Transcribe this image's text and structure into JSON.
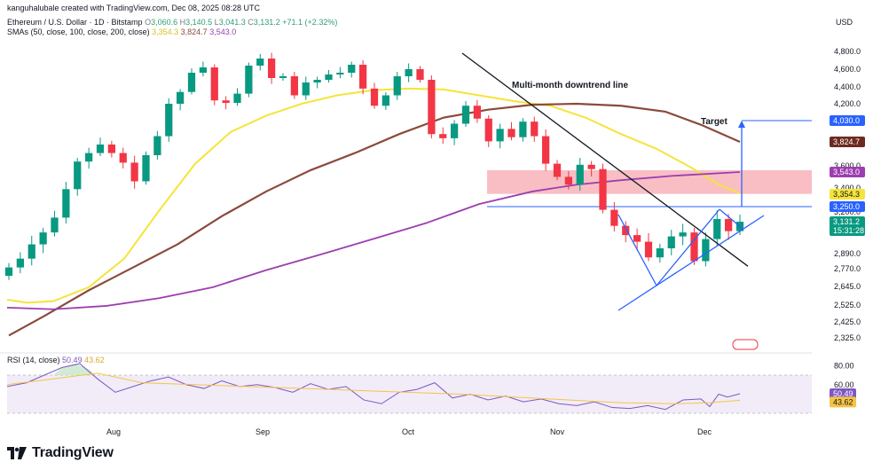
{
  "header": {
    "author_line": "kanguhalubale created with TradingView.com, Dec 08, 2025 08:28 UTC",
    "symbol": "Ethereum / U.S. Dollar · 1D · Bitstamp",
    "ohlc": [
      {
        "k": "O",
        "v": "3,060.6"
      },
      {
        "k": "H",
        "v": "3,140.5"
      },
      {
        "k": "L",
        "v": "3,041.3"
      },
      {
        "k": "C",
        "v": "3,131.2"
      }
    ],
    "change": "+71.1 (+2.32%)",
    "sma_label": "SMAs (50, close, 100, close, 200, close)",
    "sma_values": [
      "3,354.3",
      "3,824.7",
      "3,543.0"
    ],
    "currency": "USD",
    "brand": "TradingView"
  },
  "colors": {
    "up": "#089981",
    "down": "#f23645",
    "sma50": "#f5e43a",
    "sma100": "#8b4a3c",
    "sma200": "#9c3eb0",
    "rsi": "#7e57c2",
    "rsi_ma": "#f6c445",
    "pattern": "#2962ff"
  },
  "chart_data": [
    {
      "type": "line",
      "title": "Ethereum / U.S. Dollar · 1D · Bitstamp",
      "ylabel": "USD",
      "ylim": [
        2250,
        4950
      ],
      "x_ticks": [
        "Aug",
        "Sep",
        "Oct",
        "Nov",
        "Dec"
      ],
      "y_ticks": [
        "4,800.0",
        "4,600.0",
        "4,400.0",
        "4,200.0",
        "3,600.0",
        "3,400.0",
        "3,200.0",
        "2,890.0",
        "2,770.0",
        "2,645.0",
        "2,525.0",
        "2,425.0",
        "2,325.0"
      ],
      "candles_close_approx": [
        2780,
        2850,
        2960,
        3050,
        3160,
        3390,
        3640,
        3720,
        3800,
        3720,
        3630,
        3460,
        3700,
        3880,
        4200,
        4340,
        4560,
        4620,
        4240,
        4210,
        4320,
        4640,
        4720,
        4500,
        4520,
        4300,
        4450,
        4480,
        4540,
        4560,
        4650,
        4380,
        4180,
        4300,
        4520,
        4600,
        4480,
        3900,
        3860,
        4000,
        4180,
        4050,
        3830,
        3950,
        3870,
        4020,
        3880,
        3620,
        3500,
        3430,
        3610,
        3570,
        3220,
        3100,
        3030,
        2980,
        2860,
        2930,
        3020,
        3050,
        2830,
        3000,
        3150,
        3060,
        3131
      ],
      "series": [
        {
          "name": "SMA 50",
          "value_last": 3354.3
        },
        {
          "name": "SMA 100",
          "value_last": 3824.7
        },
        {
          "name": "SMA 200",
          "value_last": 3543.0
        }
      ],
      "price_labels": [
        {
          "text": "4,030.0",
          "kind": "target"
        },
        {
          "text": "3,824.7",
          "kind": "sma100"
        },
        {
          "text": "3,543.0",
          "kind": "sma200"
        },
        {
          "text": "3,354.3",
          "kind": "sma50"
        },
        {
          "text": "3,250.0",
          "kind": "level"
        },
        {
          "text": "3,131.2",
          "kind": "price"
        },
        {
          "text": "15:31:28",
          "kind": "countdown"
        }
      ],
      "zone": [
        3350,
        3560
      ],
      "level": 3250,
      "target": 4030,
      "annotations": [
        "Multi-month downtrend line",
        "Target"
      ]
    },
    {
      "type": "line",
      "title": "RSI (14, close)",
      "ylim": [
        20,
        95
      ],
      "y_ticks": [
        "80.00",
        "60.00"
      ],
      "series": [
        {
          "name": "RSI",
          "value_last": 50.49
        },
        {
          "name": "RSI MA",
          "value_last": 43.62
        }
      ],
      "value_labels": [
        "50.49",
        "43.62"
      ]
    }
  ],
  "rsi": {
    "label": "RSI (14, close)",
    "value": "50.49",
    "ma": "43.62"
  }
}
